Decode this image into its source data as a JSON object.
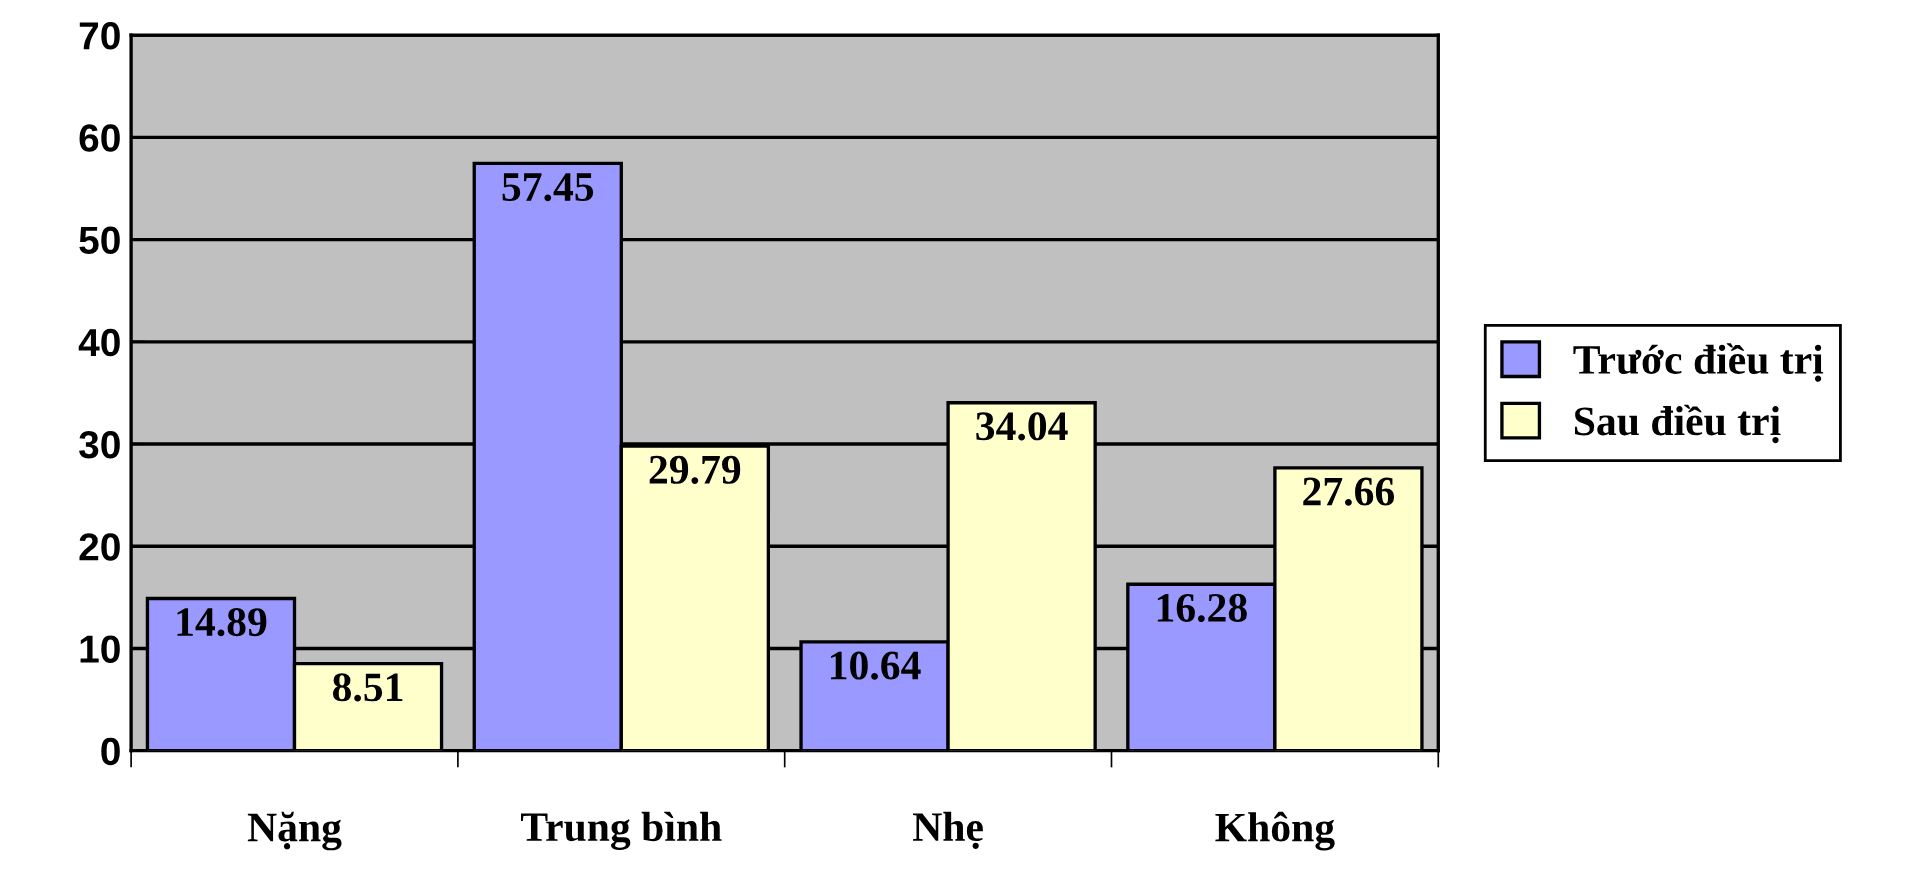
{
  "chart_data": {
    "type": "bar",
    "categories": [
      "Nặng",
      "Trung bình",
      "Nhẹ",
      "Không"
    ],
    "series": [
      {
        "name": "Trước điều trị",
        "color": "#9999ff",
        "values": [
          14.89,
          57.45,
          10.64,
          16.28
        ]
      },
      {
        "name": "Sau điều trị",
        "color": "#ffffcc",
        "values": [
          8.51,
          29.79,
          34.04,
          27.66
        ]
      }
    ],
    "ylim": [
      0,
      70
    ],
    "yticks": [
      0,
      10,
      20,
      30,
      40,
      50,
      60,
      70
    ],
    "grid": "y",
    "legend": "right",
    "data_labels": true
  }
}
